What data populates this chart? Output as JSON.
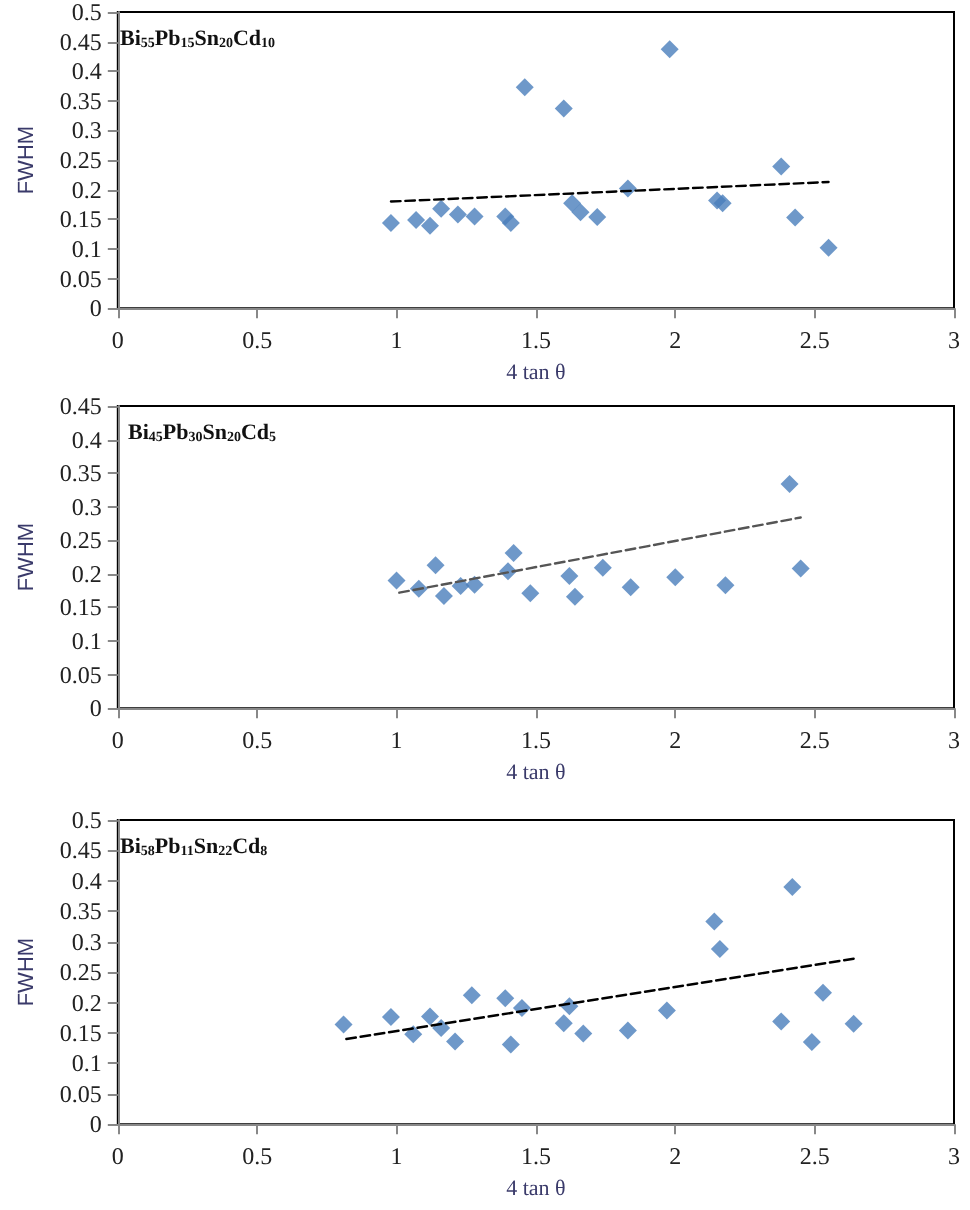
{
  "chart_data": [
    {
      "type": "scatter",
      "annotations": [
        "Bi$_{55}$Pb$_{15}$Sn$_{20}$Cd$_{10}$"
      ],
      "xlabel": "4 tan θ",
      "ylabel": "FWHM",
      "grid": false,
      "xlim": [
        0,
        3
      ],
      "xticks": [
        0,
        0.5,
        1,
        1.5,
        2,
        2.5,
        3
      ],
      "ylim": [
        0,
        0.5
      ],
      "yticks": [
        0,
        0.05,
        0.1,
        0.15,
        0.2,
        0.25,
        0.3,
        0.35,
        0.4,
        0.45,
        0.5
      ],
      "series": [
        {
          "marker": "diamond",
          "color": "#4a7ebb",
          "x": [
            0.98,
            1.07,
            1.12,
            1.16,
            1.22,
            1.28,
            1.39,
            1.41,
            1.46,
            1.6,
            1.63,
            1.66,
            1.72,
            1.83,
            1.98,
            2.15,
            2.17,
            2.38,
            2.43,
            2.55
          ],
          "values": [
            0.144,
            0.149,
            0.139,
            0.168,
            0.158,
            0.155,
            0.155,
            0.144,
            0.373,
            0.337,
            0.177,
            0.162,
            0.154,
            0.202,
            0.437,
            0.182,
            0.177,
            0.239,
            0.153,
            0.102
          ]
        },
        {
          "type": "line",
          "marker": "none",
          "color": "#000000",
          "line_style": "dashed",
          "x": [
            0.98,
            2.55
          ],
          "values": [
            0.18,
            0.213
          ]
        }
      ]
    },
    {
      "type": "scatter",
      "annotations": [
        "Bi$_{45}$Pb$_{30}$Sn$_{20}$Cd$_{5}$"
      ],
      "xlabel": "4 tan θ",
      "ylabel": "FWHM",
      "grid": false,
      "xlim": [
        0,
        3
      ],
      "xticks": [
        0,
        0.5,
        1,
        1.5,
        2,
        2.5,
        3
      ],
      "ylim": [
        0,
        0.45
      ],
      "yticks": [
        0,
        0.05,
        0.1,
        0.15,
        0.2,
        0.25,
        0.3,
        0.35,
        0.4,
        0.45
      ],
      "series": [
        {
          "marker": "diamond",
          "color": "#4a7ebb",
          "x": [
            1.0,
            1.08,
            1.14,
            1.17,
            1.23,
            1.28,
            1.4,
            1.42,
            1.48,
            1.62,
            1.64,
            1.74,
            1.84,
            2.0,
            2.18,
            2.41,
            2.45
          ],
          "values": [
            0.19,
            0.178,
            0.213,
            0.167,
            0.182,
            0.184,
            0.204,
            0.231,
            0.171,
            0.197,
            0.166,
            0.209,
            0.18,
            0.195,
            0.183,
            0.334,
            0.208
          ]
        },
        {
          "type": "line",
          "marker": "none",
          "color": "#555555",
          "line_style": "dashed",
          "x": [
            1.01,
            2.45
          ],
          "values": [
            0.172,
            0.284
          ]
        }
      ]
    },
    {
      "type": "scatter",
      "annotations": [
        "Bi$_{58}$Pb$_{11}$Sn$_{22}$Cd$_{8}$"
      ],
      "xlabel": "4 tan θ",
      "ylabel": "FWHM",
      "grid": false,
      "xlim": [
        0,
        3
      ],
      "xticks": [
        0,
        0.5,
        1,
        1.5,
        2,
        2.5,
        3
      ],
      "ylim": [
        0,
        0.5
      ],
      "yticks": [
        0,
        0.05,
        0.1,
        0.15,
        0.2,
        0.25,
        0.3,
        0.35,
        0.4,
        0.45,
        0.5
      ],
      "series": [
        {
          "marker": "diamond",
          "color": "#4a7ebb",
          "x": [
            0.81,
            0.98,
            1.06,
            1.12,
            1.16,
            1.21,
            1.27,
            1.39,
            1.41,
            1.45,
            1.6,
            1.62,
            1.67,
            1.83,
            1.97,
            2.14,
            2.16,
            2.38,
            2.42,
            2.49,
            2.53,
            2.64
          ],
          "values": [
            0.164,
            0.176,
            0.148,
            0.177,
            0.158,
            0.136,
            0.212,
            0.207,
            0.131,
            0.191,
            0.166,
            0.194,
            0.149,
            0.154,
            0.187,
            0.333,
            0.288,
            0.169,
            0.39,
            0.135,
            0.216,
            0.165
          ]
        },
        {
          "type": "line",
          "marker": "none",
          "color": "#000000",
          "line_style": "dashed",
          "x": [
            0.82,
            2.64
          ],
          "values": [
            0.14,
            0.272
          ]
        }
      ]
    }
  ]
}
